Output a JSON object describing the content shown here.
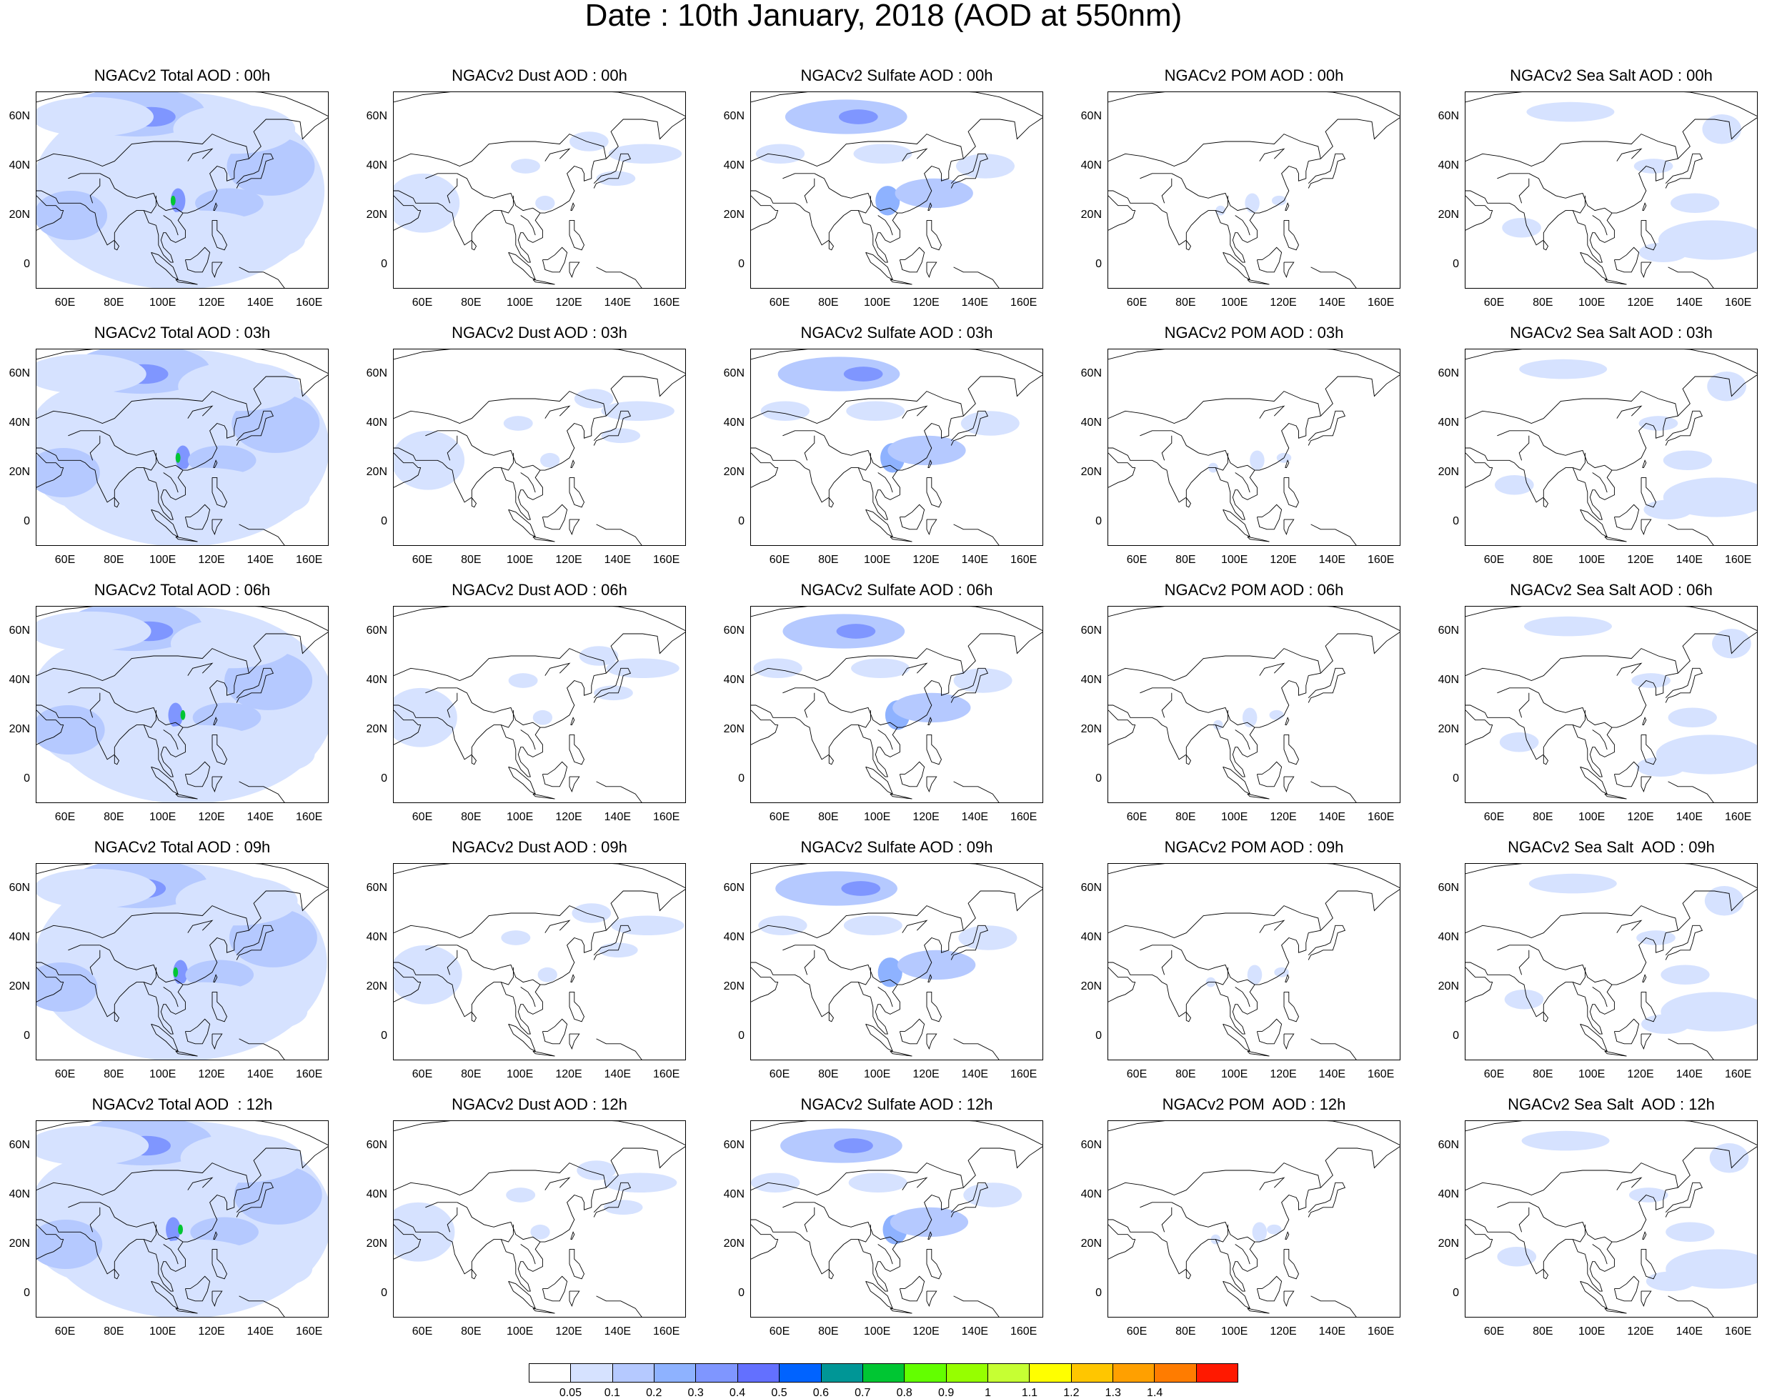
{
  "title": "Date : 10th January, 2018 (AOD at 550nm)",
  "columns": [
    "total",
    "dust",
    "sulfate",
    "pom",
    "seasalt"
  ],
  "panels": [
    [
      "NGACv2 Total AOD : 00h",
      "NGACv2 Dust AOD : 00h",
      "NGACv2 Sulfate AOD : 00h",
      "NGACv2 POM AOD : 00h",
      "NGACv2 Sea Salt AOD : 00h"
    ],
    [
      "NGACv2 Total AOD : 03h",
      "NGACv2 Dust AOD : 03h",
      "NGACv2 Sulfate AOD : 03h",
      "NGACv2 POM AOD : 03h",
      "NGACv2 Sea Salt AOD : 03h"
    ],
    [
      "NGACv2 Total AOD : 06h",
      "NGACv2 Dust AOD : 06h",
      "NGACv2 Sulfate AOD : 06h",
      "NGACv2 POM AOD : 06h",
      "NGACv2 Sea Salt AOD : 06h"
    ],
    [
      "NGACv2 Total AOD : 09h",
      "NGACv2 Dust AOD : 09h",
      "NGACv2 Sulfate AOD : 09h",
      "NGACv2 POM AOD : 09h",
      "NGACv2 Sea Salt  AOD : 09h"
    ],
    [
      "NGACv2 Total AOD  : 12h",
      "NGACv2 Dust AOD : 12h",
      "NGACv2 Sulfate AOD : 12h",
      "NGACv2 POM  AOD : 12h",
      "NGACv2 Sea Salt  AOD : 12h"
    ]
  ],
  "x_ticks": [
    "60E",
    "80E",
    "100E",
    "120E",
    "140E",
    "160E"
  ],
  "y_ticks": [
    "60N",
    "40N",
    "20N",
    "0"
  ],
  "colorbar": {
    "colors": [
      "#ffffff",
      "#d6e2ff",
      "#b5c9ff",
      "#8eb2ff",
      "#7f96ff",
      "#6370ff",
      "#0063ff",
      "#009696",
      "#00c633",
      "#63ff00",
      "#96ff00",
      "#c6ff33",
      "#ffff00",
      "#ffc600",
      "#ffa000",
      "#ff7c00",
      "#ff1900"
    ],
    "labels": [
      "0.05",
      "0.1",
      "0.2",
      "0.3",
      "0.4",
      "0.5",
      "0.6",
      "0.7",
      "0.8",
      "0.9",
      "1",
      "1.1",
      "1.2",
      "1.3",
      "1.4"
    ]
  }
}
